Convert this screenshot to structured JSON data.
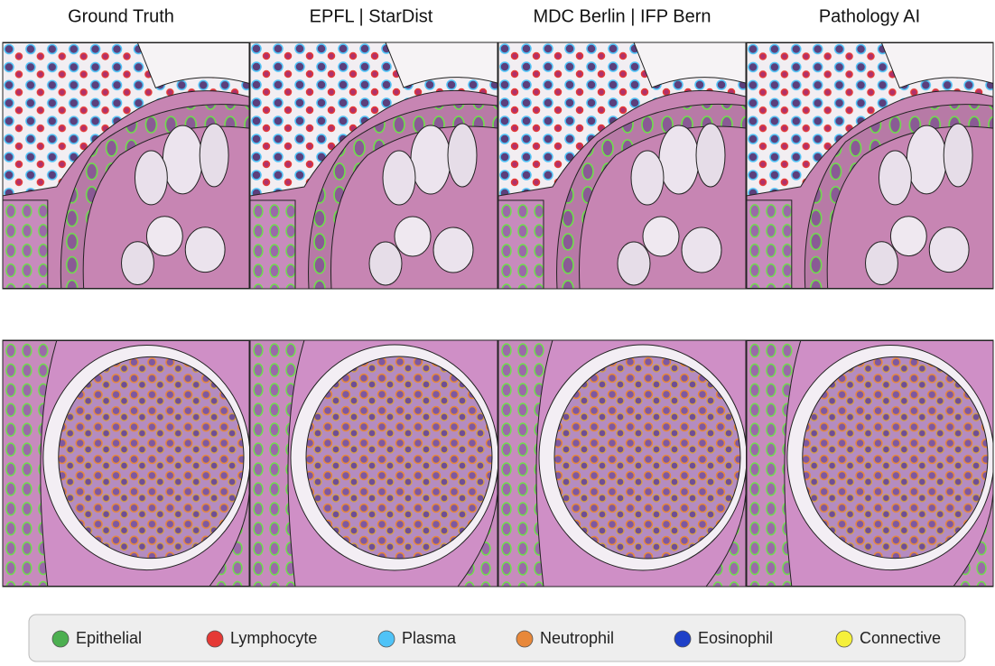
{
  "columns": [
    "Ground Truth",
    "EPFL | StarDist",
    "MDC Berlin | IFP Bern",
    "Pathology AI"
  ],
  "legend": {
    "items": [
      {
        "label": "Epithelial",
        "color": "#4caf50"
      },
      {
        "label": "Lymphocyte",
        "color": "#e53935"
      },
      {
        "label": "Plasma",
        "color": "#4fc3f7"
      },
      {
        "label": "Neutrophil",
        "color": "#e8883a"
      },
      {
        "label": "Eosinophil",
        "color": "#1e40c8"
      },
      {
        "label": "Connective",
        "color": "#f5f03a"
      }
    ]
  }
}
